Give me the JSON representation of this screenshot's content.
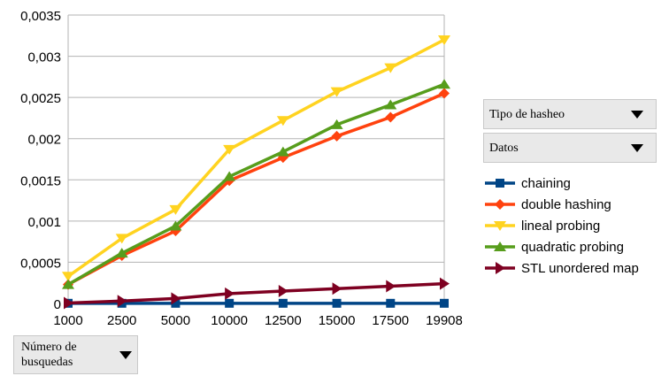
{
  "pivot_fields": {
    "column_field": "Tipo de hasheo",
    "data_field": "Datos",
    "row_field": "Número de busquedas"
  },
  "chart_data": {
    "type": "line",
    "categories": [
      "1000",
      "2500",
      "5000",
      "10000",
      "12500",
      "15000",
      "17500",
      "19908"
    ],
    "y_ticks": [
      "0",
      "0,0005",
      "0,001",
      "0,0015",
      "0,002",
      "0,0025",
      "0,003",
      "0,0035"
    ],
    "ylim": [
      0,
      0.0035
    ],
    "grid": "horizontal",
    "legend_position": "right",
    "series": [
      {
        "name": "chaining",
        "color": "#004586",
        "marker": "square",
        "values": [
          2e-06,
          2e-06,
          2e-06,
          2e-06,
          2e-06,
          2e-06,
          2e-06,
          2e-06
        ]
      },
      {
        "name": "double hashing",
        "color": "#ff420e",
        "marker": "diamond",
        "values": [
          0.00023,
          0.00058,
          0.00088,
          0.00149,
          0.00177,
          0.00203,
          0.00226,
          0.00255
        ]
      },
      {
        "name": "lineal probing",
        "color": "#ffd320",
        "marker": "triangle-down",
        "values": [
          0.00033,
          0.00079,
          0.00114,
          0.00187,
          0.00222,
          0.00257,
          0.00286,
          0.0032
        ]
      },
      {
        "name": "quadratic probing",
        "color": "#579d1c",
        "marker": "triangle-up",
        "values": [
          0.00023,
          0.00061,
          0.00094,
          0.00154,
          0.00184,
          0.00217,
          0.00241,
          0.00266
        ]
      },
      {
        "name": "STL unordered map",
        "color": "#7e0021",
        "marker": "triangle-right",
        "values": [
          5e-06,
          3e-05,
          6e-05,
          0.00012,
          0.00015,
          0.00018,
          0.00021,
          0.00024
        ]
      }
    ]
  }
}
